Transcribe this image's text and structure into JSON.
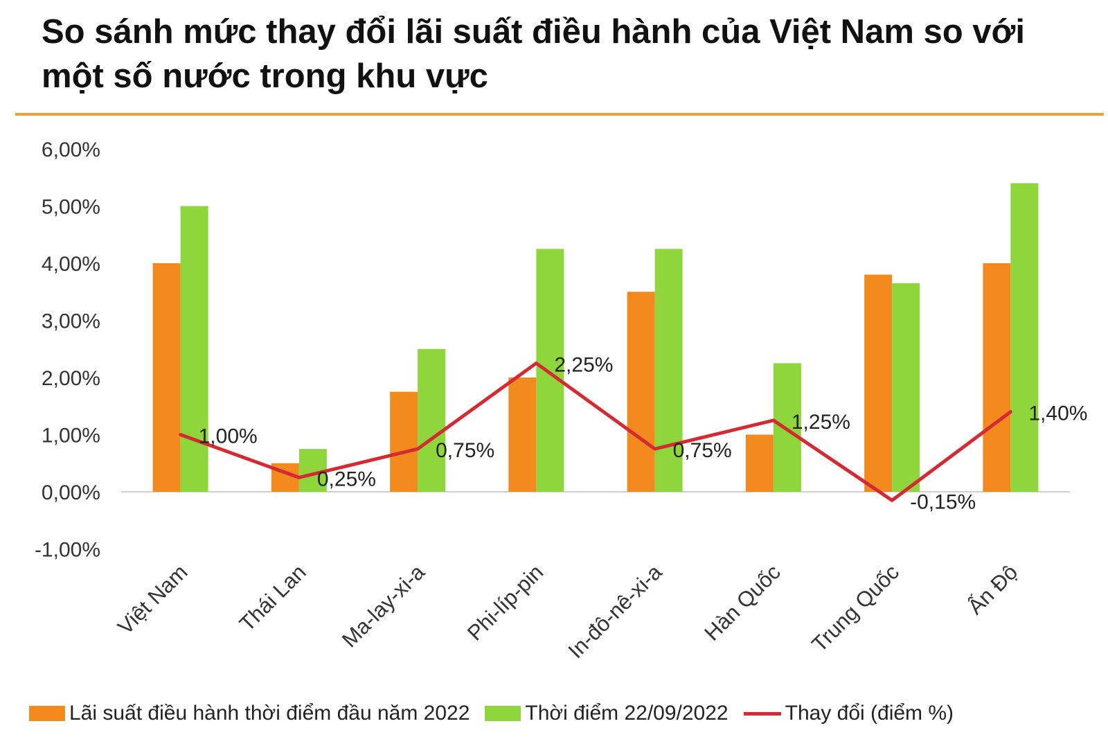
{
  "chart_data": {
    "type": "bar",
    "title": "So sánh mức thay đổi lãi suất điều hành của Việt Nam so với một số nước trong khu vực",
    "categories": [
      "Việt Nam",
      "Thái Lan",
      "Ma-lay-xi-a",
      "Phi-líp-pin",
      "In-đô-nê-xi-a",
      "Hàn Quốc",
      "Trung Quốc",
      "Ấn Độ"
    ],
    "series": [
      {
        "name": "Lãi suất điều hành thời điểm đầu năm 2022",
        "type": "bar",
        "color": "#f28a1e",
        "values": [
          4.0,
          0.5,
          1.75,
          2.0,
          3.5,
          1.0,
          3.8,
          4.0
        ]
      },
      {
        "name": "Thời điểm 22/09/2022",
        "type": "bar",
        "color": "#8fd63c",
        "values": [
          5.0,
          0.75,
          2.5,
          4.25,
          4.25,
          2.25,
          3.65,
          5.4
        ]
      },
      {
        "name": "Thay đổi (điểm %)",
        "type": "line",
        "color": "#d42a33",
        "values": [
          1.0,
          0.25,
          0.75,
          2.25,
          0.75,
          1.25,
          -0.15,
          1.4
        ]
      }
    ],
    "data_labels": [
      "1,00%",
      "0,25%",
      "0,75%",
      "2,25%",
      "0,75%",
      "1,25%",
      "-0,15%",
      "1,40%"
    ],
    "y_ticks": [
      -1,
      0,
      1,
      2,
      3,
      4,
      5,
      6
    ],
    "y_tick_labels": [
      "-1,00%",
      "0,00%",
      "1,00%",
      "2,00%",
      "3,00%",
      "4,00%",
      "5,00%",
      "6,00%"
    ],
    "ylim": [
      -1,
      6
    ],
    "xlabel": "",
    "ylabel": "",
    "grid": false,
    "legend_position": "bottom"
  }
}
